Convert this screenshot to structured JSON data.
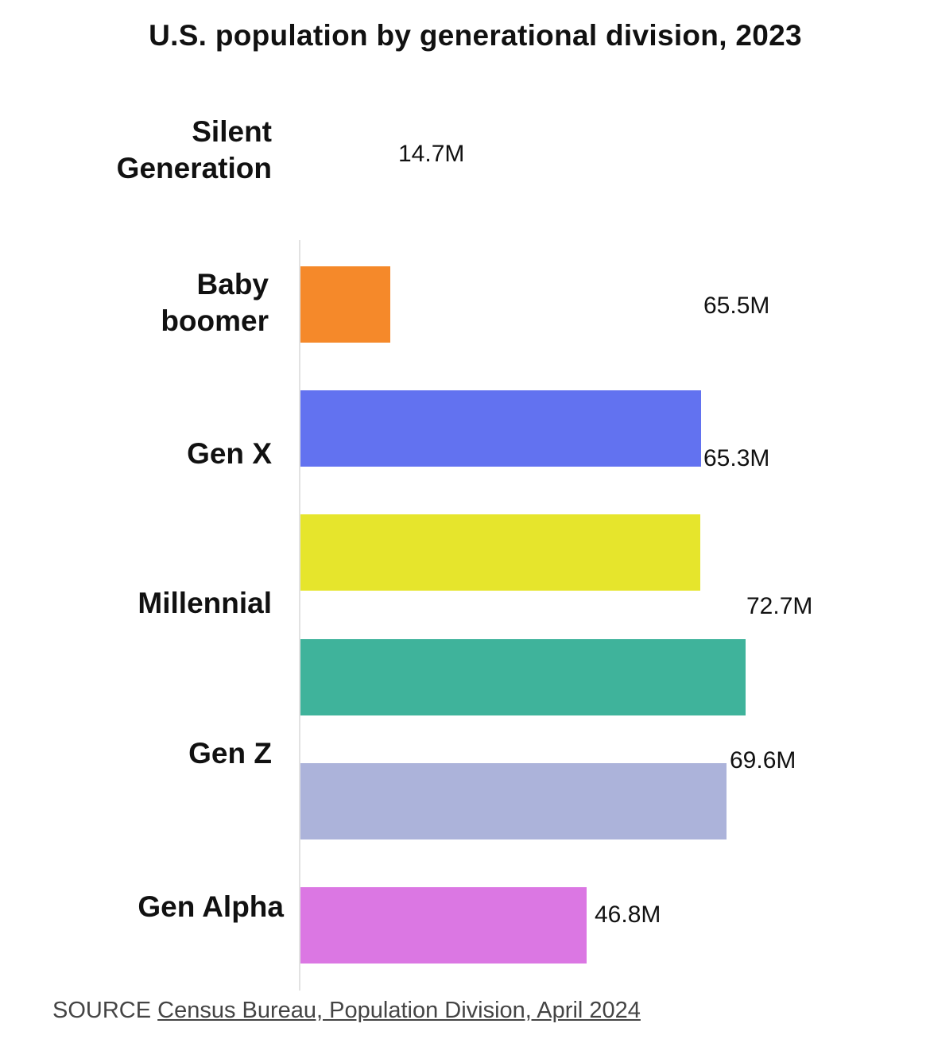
{
  "chart_data": {
    "type": "bar",
    "orientation": "horizontal",
    "title": "U.S. population by generational division, 2023",
    "categories": [
      "Silent Generation",
      "Baby boomer",
      "Gen X",
      "Millennial",
      "Gen Z",
      "Gen Alpha"
    ],
    "category_lines": [
      [
        "Silent",
        "Generation"
      ],
      [
        "Baby",
        "boomer"
      ],
      [
        "Gen X"
      ],
      [
        "Millennial"
      ],
      [
        "Gen Z"
      ],
      [
        "Gen Alpha"
      ]
    ],
    "values": [
      14.7,
      65.5,
      65.3,
      72.7,
      69.6,
      46.8
    ],
    "value_labels": [
      "14.7M",
      "65.5M",
      "65.3M",
      "72.7M",
      "69.6M",
      "46.8M"
    ],
    "unit": "millions",
    "colors": [
      "#f5892a",
      "#6272f0",
      "#e6e52c",
      "#3fb39b",
      "#acb3da",
      "#db77e3"
    ],
    "xlabel": "",
    "ylabel": "",
    "grid": false,
    "legend": "none"
  },
  "source": {
    "prefix": "SOURCE",
    "link_text": "Census Bureau, Population Division, April 2024"
  }
}
